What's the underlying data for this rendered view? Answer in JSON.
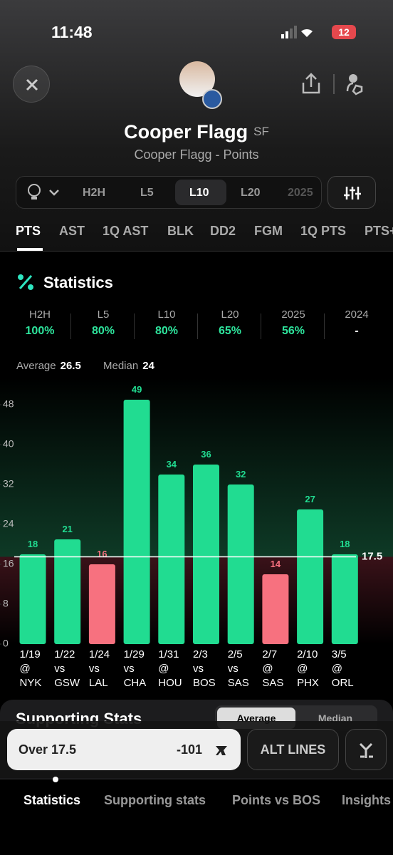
{
  "status_bar": {
    "time": "11:48",
    "battery": "12"
  },
  "header": {
    "player_name": "Cooper Flagg",
    "position": "SF",
    "subtitle": "Cooper Flagg - Points"
  },
  "filters": [
    "H2H",
    "L5",
    "L10",
    "L20",
    "2025"
  ],
  "stat_tabs": [
    "PTS",
    "AST",
    "1Q AST",
    "BLK",
    "DD2",
    "FGM",
    "1Q PTS",
    "PTS+"
  ],
  "statistics": {
    "title": "Statistics",
    "hit_rates": [
      {
        "label": "H2H",
        "value": "100%"
      },
      {
        "label": "L5",
        "value": "80%"
      },
      {
        "label": "L10",
        "value": "80%"
      },
      {
        "label": "L20",
        "value": "65%"
      },
      {
        "label": "2025",
        "value": "56%"
      },
      {
        "label": "2024",
        "value": "-"
      }
    ]
  },
  "summary": {
    "average_label": "Average",
    "average": 26.5,
    "median_label": "Median",
    "median": 24
  },
  "chart_data": {
    "type": "bar",
    "categories": [
      [
        "1/19",
        "@",
        "NYK"
      ],
      [
        "1/22",
        "vs",
        "GSW"
      ],
      [
        "1/24",
        "vs",
        "LAL"
      ],
      [
        "1/29",
        "vs",
        "CHA"
      ],
      [
        "1/31",
        "@",
        "HOU"
      ],
      [
        "2/3",
        "vs",
        "BOS"
      ],
      [
        "2/5",
        "vs",
        "SAS"
      ],
      [
        "2/7",
        "@",
        "SAS"
      ],
      [
        "2/10",
        "@",
        "PHX"
      ],
      [
        "3/5",
        "@",
        "ORL"
      ]
    ],
    "values": [
      18,
      21,
      16,
      49,
      34,
      36,
      32,
      14,
      27,
      18
    ],
    "line": 17.5,
    "over_color": "#21dc91",
    "under_color": "#f7717f",
    "ylim": [
      0,
      52
    ],
    "yticks": [
      0,
      8,
      16,
      24,
      32,
      40,
      48
    ]
  },
  "supporting": {
    "title": "Supporting Stats",
    "toggle": [
      "Average",
      "Median"
    ]
  },
  "bet": {
    "label": "Over 17.5",
    "odds": "-101",
    "alt": "ALT LINES"
  },
  "bottom_tabs": [
    "Statistics",
    "Supporting stats",
    "Points vs BOS",
    "Insights"
  ]
}
